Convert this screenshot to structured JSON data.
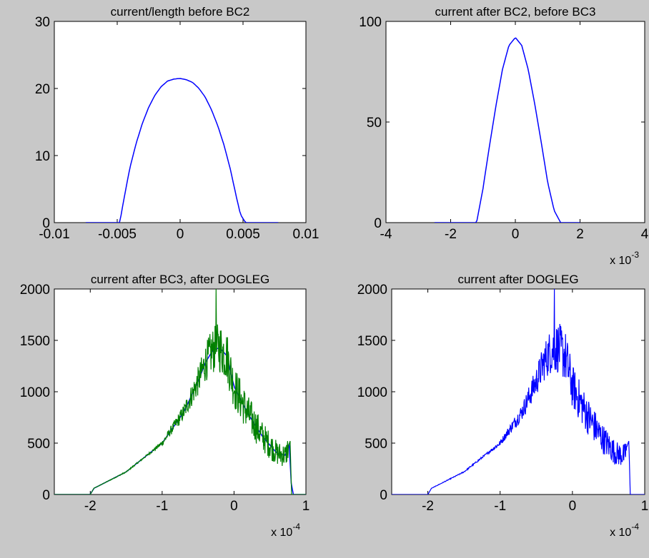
{
  "figure": {
    "background": "#c8c8c8"
  },
  "chart_data": [
    {
      "type": "line",
      "title": "current/length before BC2",
      "xlabel": "",
      "ylabel": "",
      "xlim": [
        -0.01,
        0.01
      ],
      "ylim": [
        0,
        30
      ],
      "x_ticks": [
        -0.01,
        -0.005,
        0,
        0.005,
        0.01
      ],
      "x_tick_labels": [
        "-0.01",
        "-0.005",
        "0",
        "0.005",
        "0.01"
      ],
      "y_ticks": [
        0,
        10,
        20,
        30
      ],
      "y_tick_labels": [
        "0",
        "10",
        "20",
        "30"
      ],
      "x_exponent": null,
      "grid": false,
      "series": [
        {
          "color": "#0000ff",
          "x": [
            -0.0075,
            -0.0048,
            -0.0045,
            -0.004,
            -0.0035,
            -0.003,
            -0.0025,
            -0.002,
            -0.0015,
            -0.001,
            -0.0005,
            0,
            0.0005,
            0.001,
            0.0015,
            0.002,
            0.0025,
            0.003,
            0.0035,
            0.004,
            0.0045,
            0.0048,
            0.0052,
            0.0078
          ],
          "y": [
            0,
            0,
            3.2,
            8.1,
            11.8,
            14.8,
            17.2,
            19.0,
            20.3,
            21.1,
            21.4,
            21.5,
            21.3,
            20.9,
            20.0,
            18.7,
            16.8,
            14.4,
            11.5,
            7.9,
            3.6,
            1.2,
            0,
            0
          ]
        }
      ]
    },
    {
      "type": "line",
      "title": "current after BC2, before BC3",
      "xlabel": "",
      "ylabel": "",
      "xlim": [
        -0.004,
        0.004
      ],
      "ylim": [
        0,
        100
      ],
      "x_ticks": [
        -0.004,
        -0.002,
        0,
        0.002,
        0.004
      ],
      "x_tick_labels": [
        "-4",
        "-2",
        "0",
        "2",
        "4"
      ],
      "y_ticks": [
        0,
        50,
        100
      ],
      "y_tick_labels": [
        "0",
        "50",
        "100"
      ],
      "x_exponent": "x 10",
      "x_exponent_power": "-3",
      "grid": false,
      "series": [
        {
          "color": "#0000ff",
          "x": [
            -0.0025,
            -0.0012,
            -0.001,
            -0.0008,
            -0.0006,
            -0.0004,
            -0.0002,
            0,
            0.0002,
            0.0004,
            0.0006,
            0.0008,
            0.001,
            0.0012,
            0.0014,
            0.0016,
            0.002
          ],
          "y": [
            0,
            0,
            17,
            38,
            58,
            76,
            88,
            92,
            88,
            76,
            59,
            40,
            20,
            6,
            0,
            0,
            0
          ]
        }
      ]
    },
    {
      "type": "line",
      "title": "current after BC3, after DOGLEG",
      "xlabel": "",
      "ylabel": "",
      "xlim": [
        -0.00025,
        0.0001
      ],
      "ylim": [
        0,
        2000
      ],
      "x_ticks": [
        -0.0002,
        -0.0001,
        0,
        0.0001
      ],
      "x_tick_labels": [
        "-2",
        "-1",
        "0",
        "1"
      ],
      "y_ticks": [
        0,
        500,
        1000,
        1500,
        2000
      ],
      "y_tick_labels": [
        "0",
        "500",
        "1000",
        "1500",
        "2000"
      ],
      "x_exponent": "x 10",
      "x_exponent_power": "-4",
      "grid": false,
      "series": [
        {
          "color": "#0000ff",
          "x": [
            -0.00025,
            -0.0002,
            -0.000195,
            -0.00015,
            -0.0001,
            -7e-05,
            -5e-05,
            -4e-05,
            -3e-05,
            -2e-05,
            -1e-05,
            0,
            2e-05,
            4e-05,
            6e-05,
            7.2e-05,
            7.6e-05,
            7.8e-05,
            8e-05,
            0.0001
          ],
          "y": [
            0,
            0,
            60,
            220,
            500,
            800,
            1100,
            1280,
            1400,
            1430,
            1350,
            1050,
            780,
            560,
            400,
            380,
            480,
            520,
            0,
            0
          ],
          "noise": 0
        },
        {
          "color": "#008000",
          "x": [
            -0.00025,
            -0.0002,
            -0.000195,
            -0.00015,
            -0.0001,
            -7e-05,
            -5e-05,
            -4e-05,
            -3e-05,
            -2e-05,
            -1e-05,
            0,
            2e-05,
            4e-05,
            6e-05,
            7.2e-05,
            7.6e-05,
            7.8e-05,
            8e-05,
            0.0001
          ],
          "y": [
            0,
            0,
            60,
            220,
            500,
            800,
            1100,
            1280,
            1400,
            1430,
            1350,
            1050,
            780,
            560,
            400,
            380,
            480,
            520,
            0,
            0
          ],
          "noise": 1,
          "peak": [
            -2.5e-05,
            2000
          ]
        }
      ]
    },
    {
      "type": "line",
      "title": "current after DOGLEG",
      "xlabel": "",
      "ylabel": "",
      "xlim": [
        -0.00025,
        0.0001
      ],
      "ylim": [
        0,
        2000
      ],
      "x_ticks": [
        -0.0002,
        -0.0001,
        0,
        0.0001
      ],
      "x_tick_labels": [
        "-2",
        "-1",
        "0",
        "1"
      ],
      "y_ticks": [
        0,
        500,
        1000,
        1500,
        2000
      ],
      "y_tick_labels": [
        "0",
        "500",
        "1000",
        "1500",
        "2000"
      ],
      "x_exponent": "x 10",
      "x_exponent_power": "-4",
      "grid": false,
      "series": [
        {
          "color": "#0000ff",
          "x": [
            -0.00025,
            -0.0002,
            -0.000195,
            -0.00015,
            -0.0001,
            -7e-05,
            -5e-05,
            -4e-05,
            -3e-05,
            -2e-05,
            -1e-05,
            0,
            2e-05,
            4e-05,
            6e-05,
            7.2e-05,
            7.6e-05,
            7.8e-05,
            8e-05,
            0.0001
          ],
          "y": [
            0,
            0,
            60,
            220,
            500,
            800,
            1100,
            1280,
            1400,
            1430,
            1350,
            1050,
            780,
            560,
            400,
            380,
            480,
            520,
            0,
            0
          ],
          "noise": 1,
          "peak": [
            -2.5e-05,
            2000
          ]
        }
      ]
    }
  ]
}
